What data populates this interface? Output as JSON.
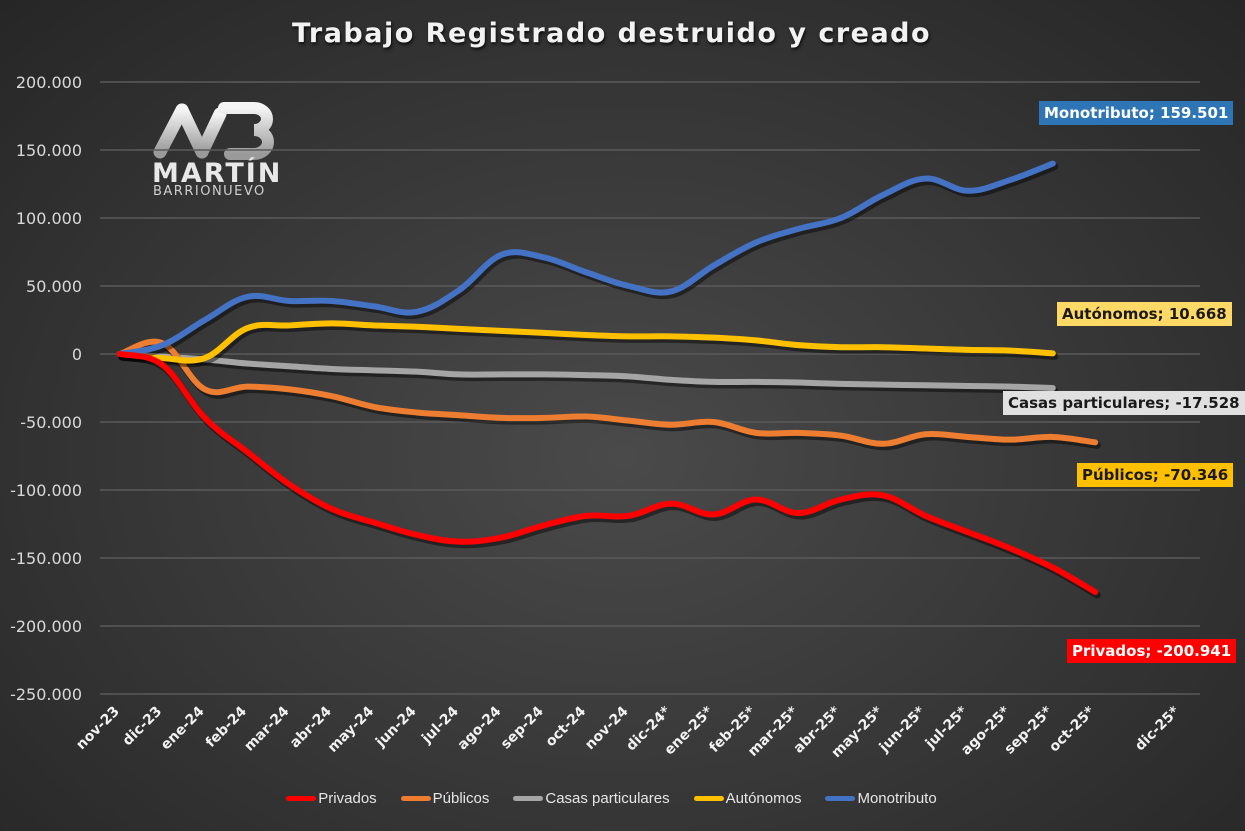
{
  "chart_data": {
    "type": "line",
    "title": "Trabajo Registrado destruido y creado",
    "xlabel": "",
    "ylabel": "",
    "ylim": [
      -250000,
      200000
    ],
    "yticks": [
      200000,
      150000,
      100000,
      50000,
      0,
      -50000,
      -100000,
      -150000,
      -200000,
      -250000
    ],
    "ytick_labels": [
      "200.000",
      "150.000",
      "100.000",
      "50.000",
      "0",
      "-50.000",
      "-100.000",
      "-150.000",
      "-200.000",
      "-250.000"
    ],
    "grid": true,
    "legend_position": "bottom",
    "categories": [
      "nov-23",
      "dic-23",
      "ene-24",
      "feb-24",
      "mar-24",
      "abr-24",
      "may-24",
      "jun-24",
      "jul-24",
      "ago-24",
      "sep-24",
      "oct-24",
      "nov-24",
      "dic-24*",
      "ene-25*",
      "feb-25*",
      "mar-25*",
      "abr-25*",
      "may-25*",
      "jun-25*",
      "jul-25*",
      "ago-25*",
      "sep-25*",
      "oct-25*",
      "",
      "dic-25*"
    ],
    "series": [
      {
        "name": "Privados",
        "color": "#ff0000",
        "values": [
          0,
          -8000,
          -47000,
          -72000,
          -96000,
          -114000,
          -124000,
          -133000,
          -138000,
          -135000,
          -126000,
          -119000,
          -119000,
          -110000,
          -118000,
          -107000,
          -117000,
          -107000,
          -104000,
          -119000,
          -131000,
          -143000,
          -157000,
          -175000
        ],
        "end_label": "Privados; -200.941",
        "label_bg": "#ff0000",
        "label_fg": "#ffffff"
      },
      {
        "name": "Públicos",
        "color": "#ed7d31",
        "values": [
          0,
          8000,
          -26000,
          -24000,
          -26000,
          -31000,
          -39000,
          -43000,
          -45000,
          -47000,
          -47000,
          -46000,
          -49000,
          -52000,
          -50000,
          -58000,
          -58000,
          -60000,
          -66000,
          -59000,
          -61000,
          -63000,
          -61000,
          -65000
        ],
        "end_label": "Públicos; -70.346",
        "label_bg": "#ffc000",
        "label_fg": "#1a1a1a"
      },
      {
        "name": "Casas particulares",
        "color": "#a5a5a5",
        "values": [
          0,
          -2000,
          -4000,
          -7000,
          -9000,
          -11000,
          -12000,
          -13000,
          -15000,
          -15000,
          -15000,
          -15500,
          -16500,
          -19000,
          -20500,
          -20500,
          -21000,
          -22000,
          -22500,
          -23000,
          -23500,
          -24000,
          -25000
        ],
        "end_label": "Casas particulares; -17.528",
        "label_bg": "#e0e0e0",
        "label_fg": "#1a1a1a"
      },
      {
        "name": "Autónomos",
        "color": "#ffc000",
        "values": [
          0,
          -3000,
          -3000,
          19000,
          21000,
          22500,
          21000,
          20000,
          18500,
          17000,
          15500,
          14000,
          13000,
          13000,
          12000,
          10000,
          6500,
          5000,
          5000,
          4000,
          3000,
          2500,
          500
        ],
        "end_label": "Autónomos; 10.668",
        "label_bg": "#ffd966",
        "label_fg": "#1a1a1a"
      },
      {
        "name": "Monotributo",
        "color": "#4472c4",
        "values": [
          0,
          6500,
          25000,
          42000,
          39000,
          39000,
          35000,
          31000,
          47000,
          73000,
          71000,
          60000,
          50000,
          46000,
          65000,
          82000,
          92000,
          100000,
          117000,
          129000,
          120000,
          128000,
          140000
        ],
        "end_label": "Monotributo; 159.501",
        "label_bg": "#2e75b6",
        "label_fg": "#ffffff"
      }
    ],
    "annotations": [
      {
        "text": "Monotributo; 159.501",
        "series": "Monotributo"
      },
      {
        "text": "Autónomos; 10.668",
        "series": "Autónomos"
      },
      {
        "text": "Casas particulares; -17.528",
        "series": "Casas particulares"
      },
      {
        "text": "Públicos; -70.346",
        "series": "Públicos"
      },
      {
        "text": "Privados; -200.941",
        "series": "Privados"
      }
    ]
  },
  "logo": {
    "monogram": "MB",
    "name": "MARTÍN",
    "subtitle": "BARRIONUEVO"
  },
  "legend": {
    "items": [
      {
        "label": "Privados",
        "color": "#ff0000"
      },
      {
        "label": "Públicos",
        "color": "#ed7d31"
      },
      {
        "label": "Casas particulares",
        "color": "#a5a5a5"
      },
      {
        "label": "Autónomos",
        "color": "#ffc000"
      },
      {
        "label": "Monotributo",
        "color": "#4472c4"
      }
    ]
  },
  "data_labels": [
    {
      "text": "Monotributo; 159.501",
      "x": 1039,
      "y": 101,
      "bg": "#2e75b6",
      "fg": "#ffffff"
    },
    {
      "text": "Autónomos; 10.668",
      "x": 1057,
      "y": 302,
      "bg": "#ffd966",
      "fg": "#1a1a1a"
    },
    {
      "text": "Casas particulares; -17.528",
      "x": 1003,
      "y": 391,
      "bg": "#e0e0e0",
      "fg": "#1a1a1a"
    },
    {
      "text": "Públicos; -70.346",
      "x": 1077,
      "y": 463,
      "bg": "#ffc000",
      "fg": "#1a1a1a"
    },
    {
      "text": "Privados; -200.941",
      "x": 1067,
      "y": 639,
      "bg": "#ff0000",
      "fg": "#ffffff"
    }
  ]
}
